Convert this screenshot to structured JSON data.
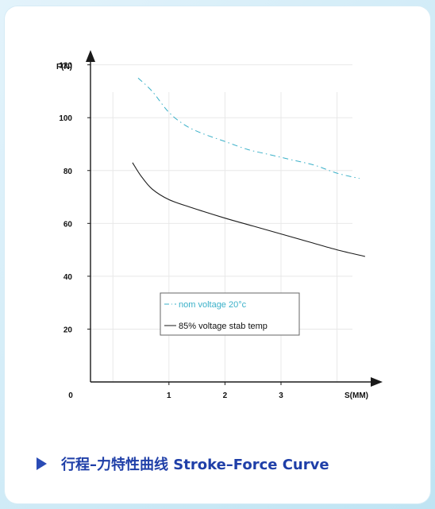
{
  "chart_data": {
    "type": "line",
    "xlabel": "S(MM)",
    "ylabel": "F(N)",
    "x_ticks": [
      "1",
      "2",
      "3"
    ],
    "x_origin_label": "0",
    "y_ticks": [
      "20",
      "40",
      "60",
      "80",
      "100",
      "120"
    ],
    "xlim": [
      -0.4,
      4.7
    ],
    "ylim": [
      0,
      125
    ],
    "grid": true,
    "legend_placement": "bottom-center",
    "series": [
      {
        "name": "nom  voltage 20°c",
        "style": "dashed",
        "color": "#3ab0c8",
        "x": [
          0.45,
          0.7,
          1.0,
          1.3,
          1.6,
          2.0,
          2.4,
          2.8,
          3.2,
          3.6,
          4.0,
          4.4
        ],
        "y": [
          115,
          110,
          102,
          97,
          94,
          91,
          88,
          86,
          84,
          82,
          79,
          77
        ]
      },
      {
        "name": "85%  voltage stab temp",
        "style": "solid",
        "color": "#1a1a1a",
        "x": [
          0.35,
          0.5,
          0.7,
          1.0,
          1.4,
          2.0,
          2.5,
          3.0,
          3.5,
          4.0,
          4.5
        ],
        "y": [
          83,
          78,
          73,
          69,
          66,
          62,
          59,
          56,
          53,
          50,
          47.5
        ]
      }
    ]
  },
  "caption": {
    "text": "行程–力特性曲线 Stroke–Force Curve",
    "icon": "play-triangle-icon",
    "color": "#1f3fa8"
  }
}
